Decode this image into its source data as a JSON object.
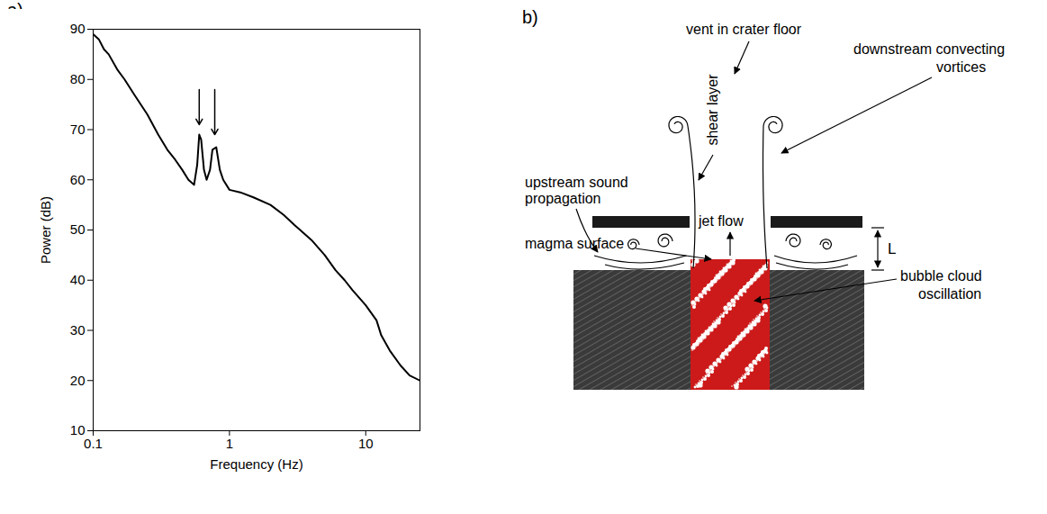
{
  "chart_data": {
    "type": "line",
    "panel_label": "a)",
    "x_label": "Frequency (Hz)",
    "y_label": "Power (dB)",
    "log": "x",
    "grid": false,
    "color": "#000000",
    "x": [
      0.1,
      0.11,
      0.12,
      0.13,
      0.15,
      0.17,
      0.2,
      0.25,
      0.3,
      0.35,
      0.4,
      0.45,
      0.5,
      0.55,
      0.58,
      0.6,
      0.62,
      0.65,
      0.68,
      0.72,
      0.75,
      0.8,
      0.85,
      0.9,
      1.0,
      1.2,
      1.5,
      2,
      2.5,
      3,
      4,
      5,
      6,
      7,
      8,
      10,
      12,
      13,
      15,
      18,
      21,
      25
    ],
    "values": [
      89,
      88,
      86,
      85,
      82,
      80,
      77,
      73,
      69,
      66,
      64,
      62,
      60,
      59,
      63,
      69,
      68,
      62,
      60,
      62,
      66,
      66.5,
      62,
      60,
      58,
      57.5,
      56.5,
      55,
      53,
      51,
      48,
      45,
      42,
      40,
      38,
      35,
      32,
      29,
      26,
      23,
      21,
      20
    ],
    "xlim": [
      0.1,
      25
    ],
    "xticks": [
      0.1,
      1,
      10
    ],
    "ylim": [
      10,
      90
    ],
    "yticks": [
      10,
      20,
      30,
      40,
      50,
      60,
      70,
      80,
      90
    ],
    "annotations": [
      {
        "type": "arrow",
        "x": 0.6,
        "y_from": 78,
        "y_to": 71
      },
      {
        "type": "arrow",
        "x": 0.78,
        "y_from": 78,
        "y_to": 69
      }
    ]
  },
  "diagram": {
    "panel_label": "b)",
    "labels": {
      "vent": "vent in crater floor",
      "shear": "shear layer",
      "downstream": [
        "downstream convecting",
        "vortices"
      ],
      "upstream": [
        "upstream sound",
        "propagation"
      ],
      "jet": "jet flow",
      "length": "L",
      "magma_surface": "magma surface",
      "bubble": [
        "bubble cloud",
        "oscillation"
      ]
    }
  }
}
